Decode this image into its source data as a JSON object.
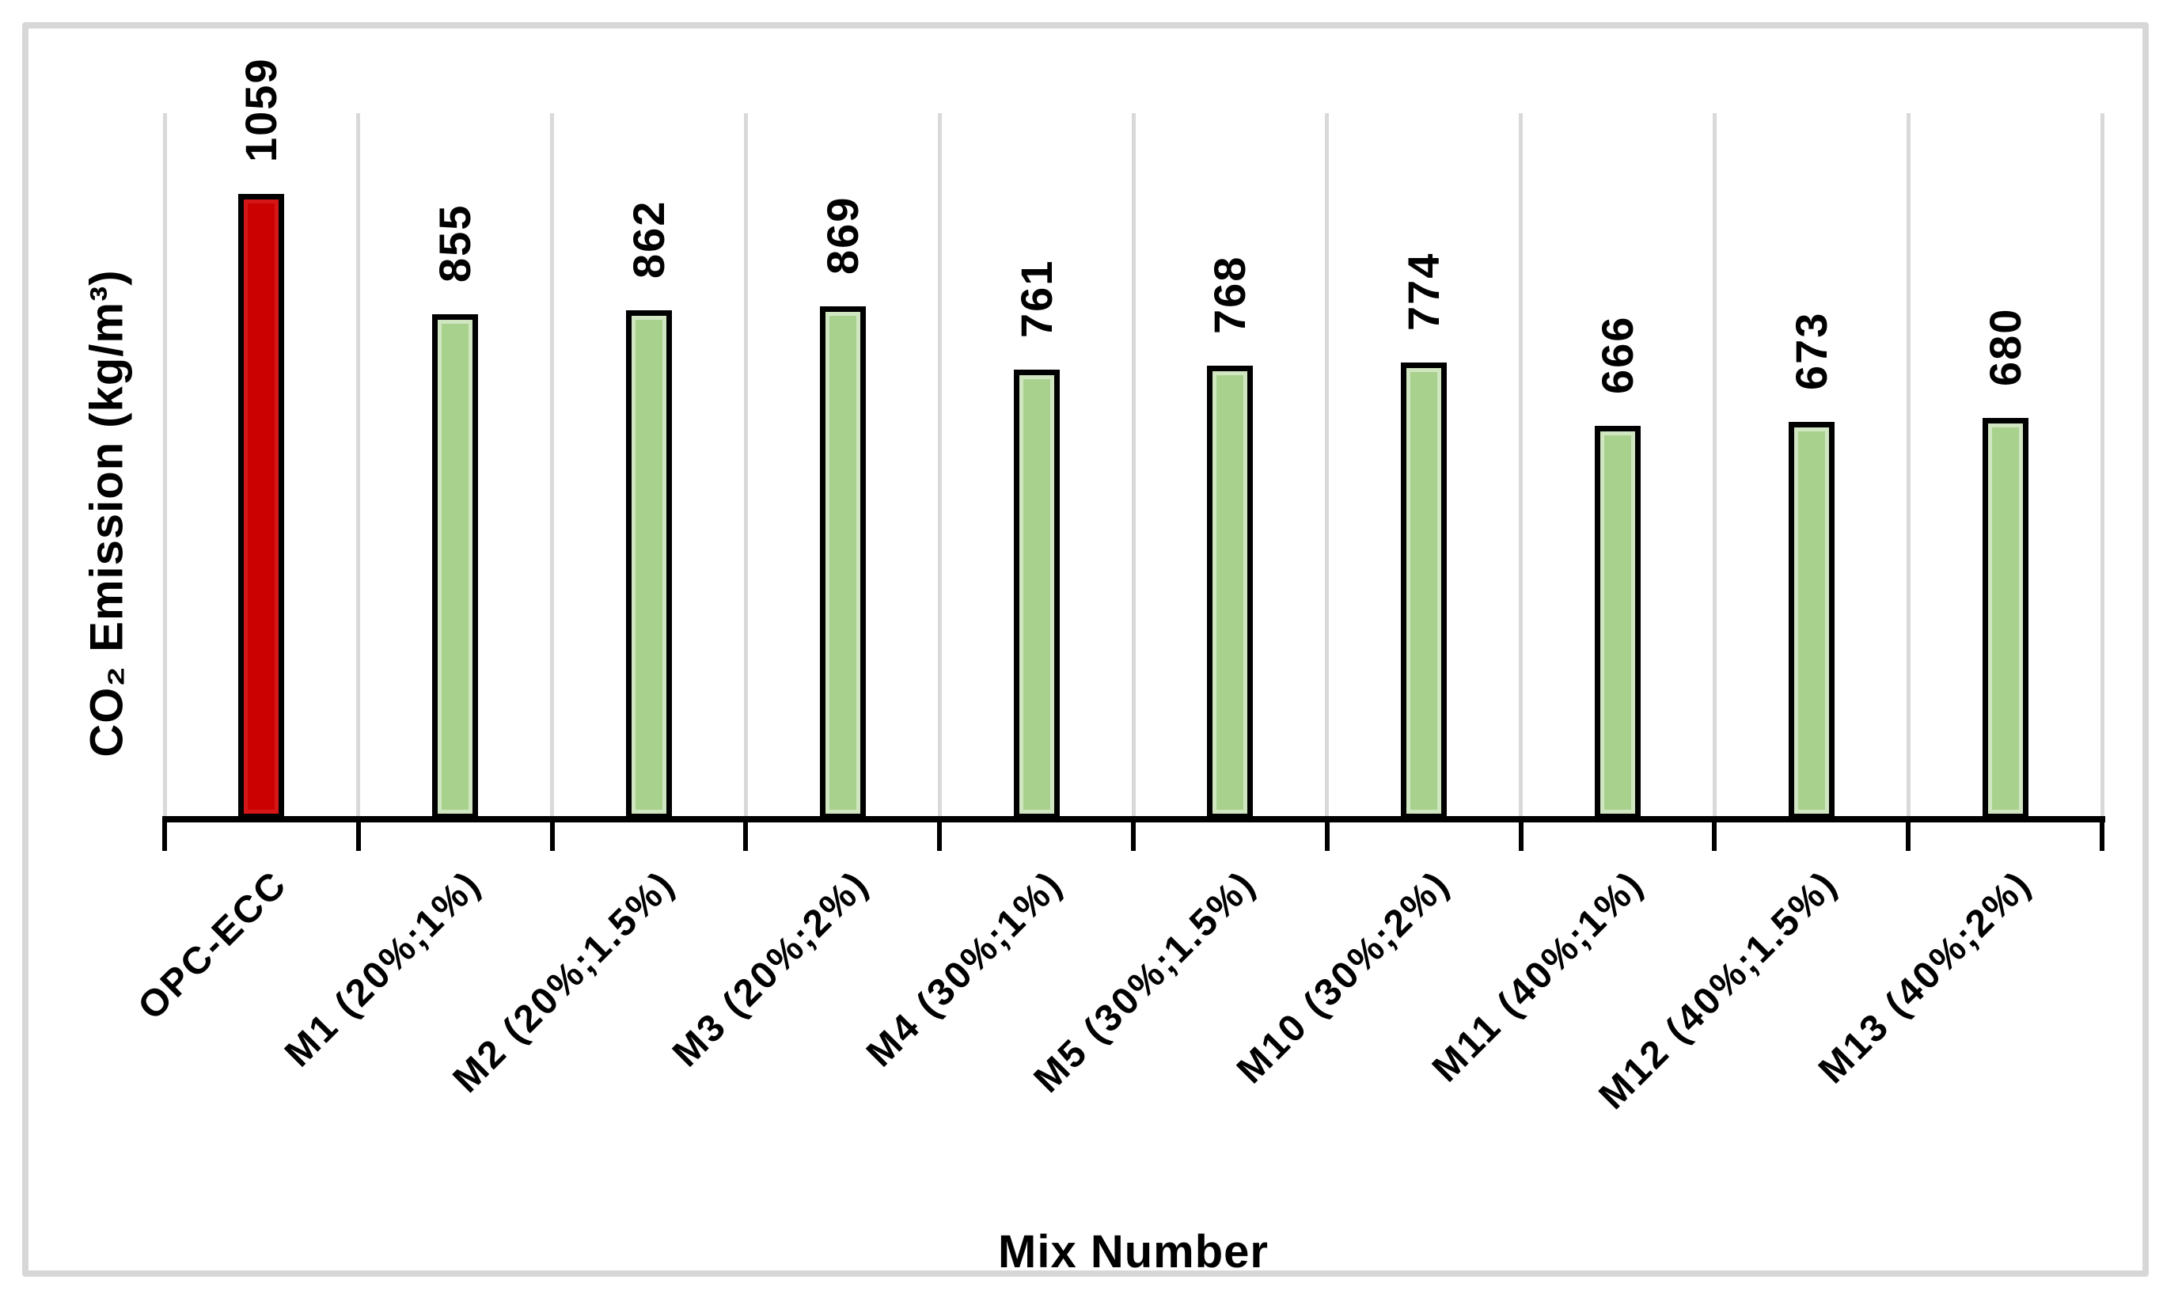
{
  "figure": {
    "background_color": "#ffffff",
    "frame_border_color": "#d7d7d7"
  },
  "chart_data": {
    "type": "bar",
    "title": "",
    "xlabel": "Mix Number",
    "ylabel": "CO₂ Emission (kg/m³)",
    "categories": [
      "OPC-ECC",
      "M1 (20%;1%)",
      "M2 (20%;1.5%)",
      "M3 (20%;2%)",
      "M4 (30%;1%)",
      "M5 (30%;1.5%)",
      "M10 (30%;2%)",
      "M11 (40%;1%)",
      "M12 (40%;1.5%)",
      "M13 (40%;2%)"
    ],
    "values": [
      1059,
      855,
      862,
      869,
      761,
      768,
      774,
      666,
      673,
      680
    ],
    "value_labels": [
      "1059",
      "855",
      "862",
      "869",
      "761",
      "768",
      "774",
      "666",
      "673",
      "680"
    ],
    "bar_fill_colors": [
      "#cb0101",
      "#a9d18e",
      "#a9d18e",
      "#a9d18e",
      "#a9d18e",
      "#a9d18e",
      "#a9d18e",
      "#a9d18e",
      "#a9d18e",
      "#a9d18e"
    ],
    "bar_edge_highlight_colors": [
      "rgba(255,120,120,0.18)",
      "rgba(255,255,255,0.45)",
      "rgba(255,255,255,0.45)",
      "rgba(255,255,255,0.45)",
      "rgba(255,255,255,0.45)",
      "rgba(255,255,255,0.45)",
      "rgba(255,255,255,0.45)",
      "rgba(255,255,255,0.45)",
      "rgba(255,255,255,0.45)",
      "rgba(255,255,255,0.45)"
    ],
    "bar_border_color": "#000000",
    "axis_color": "#000000",
    "gridline_color": "#d9d9d9",
    "gridlines": "vertical-only",
    "legend": "none",
    "y_tick_labels_visible": false,
    "value_label_rotation_deg": 90,
    "x_tick_label_rotation_deg": 45,
    "ylim": [
      0,
      1200
    ]
  }
}
